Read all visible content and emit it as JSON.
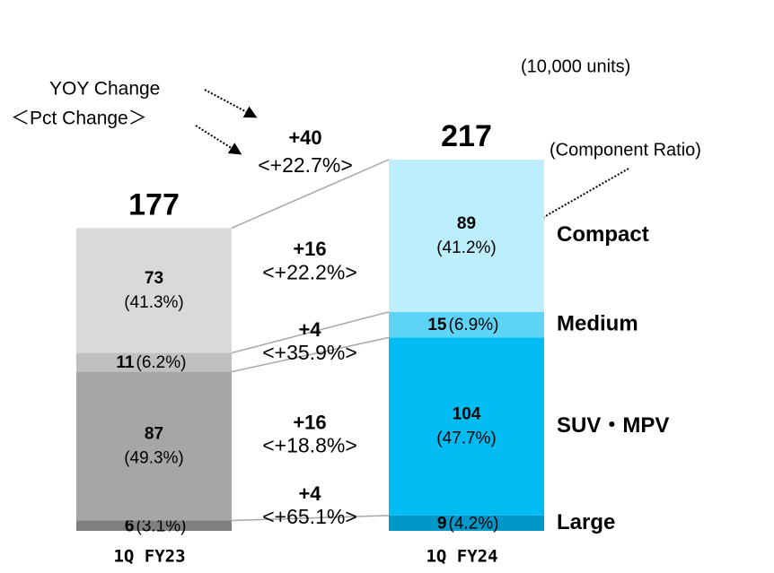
{
  "chart_data": {
    "type": "bar",
    "stacked": true,
    "unit_label": "(10,000 units)",
    "annotations": {
      "yoy": "YOY Change",
      "pct": "＜Pct Change＞",
      "ratio": "(Component Ratio)"
    },
    "categories": [
      "1Q FY23",
      "1Q FY24"
    ],
    "totals": [
      177,
      217
    ],
    "total_change": {
      "label": "+40",
      "pct_label": "<+22.7%>"
    },
    "series": [
      {
        "name": "Large",
        "colors": [
          "#808080",
          "#0098c8"
        ],
        "values": [
          6,
          9
        ],
        "ratio_labels": [
          "(3.1%)",
          "(4.2%)"
        ],
        "change_label": "+4",
        "pct_change_label": "<+65.1%>"
      },
      {
        "name": "SUV・MPV",
        "colors": [
          "#a6a6a6",
          "#00bcf2"
        ],
        "values": [
          87,
          104
        ],
        "ratio_labels": [
          "(49.3%)",
          "(47.7%)"
        ],
        "change_label": "+16",
        "pct_change_label": "<+18.8%>"
      },
      {
        "name": "Medium",
        "colors": [
          "#bfbfbf",
          "#5dd3f5"
        ],
        "values": [
          11,
          15
        ],
        "ratio_labels": [
          "(6.2%)",
          "(6.9%)"
        ],
        "change_label": "+4",
        "pct_change_label": "<+35.9%>"
      },
      {
        "name": "Compact",
        "colors": [
          "#d9d9d9",
          "#bdeefb"
        ],
        "values": [
          73,
          89
        ],
        "ratio_labels": [
          "(41.3%)",
          "(41.2%)"
        ],
        "change_label": "+16",
        "pct_change_label": "<+22.2%>"
      }
    ]
  }
}
